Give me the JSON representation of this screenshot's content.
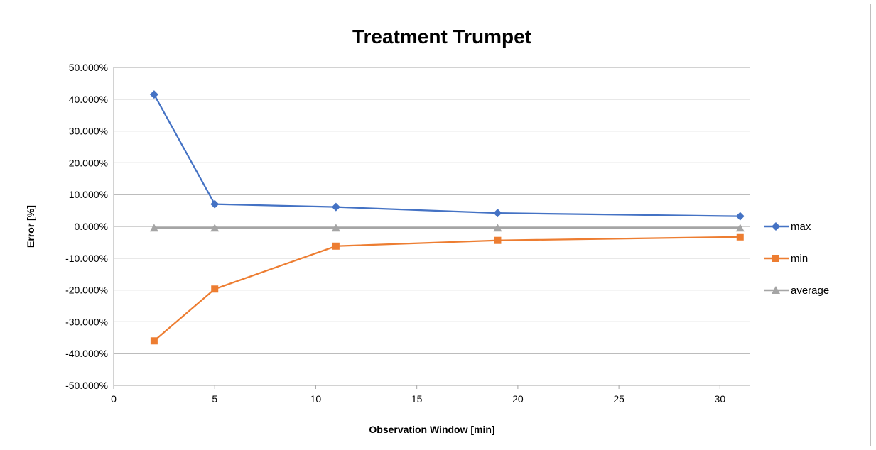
{
  "chart_data": {
    "type": "line",
    "title": "Treatment Trumpet",
    "xlabel": "Observation Window [min]",
    "ylabel": "Error [%]",
    "xlim": [
      0,
      31.5
    ],
    "ylim": [
      -50,
      50
    ],
    "x_ticks": [
      0,
      5,
      10,
      15,
      20,
      25,
      30
    ],
    "y_ticks": [
      50,
      40,
      30,
      20,
      10,
      0,
      -10,
      -20,
      -30,
      -40,
      -50
    ],
    "y_tick_labels": [
      "50.000%",
      "40.000%",
      "30.000%",
      "20.000%",
      "10.000%",
      "0.000%",
      "-10.000%",
      "-20.000%",
      "-30.000%",
      "-40.000%",
      "-50.000%"
    ],
    "x_tick_labels": [
      "0",
      "5",
      "10",
      "15",
      "20",
      "25",
      "30"
    ],
    "grid": "horizontal",
    "legend_position": "right",
    "x": [
      2,
      5,
      11,
      19,
      31
    ],
    "series": [
      {
        "name": "max",
        "values": [
          41.5,
          7.0,
          6.1,
          4.2,
          3.2
        ],
        "color": "#4472c4",
        "marker": "diamond"
      },
      {
        "name": "min",
        "values": [
          -36.0,
          -19.7,
          -6.2,
          -4.4,
          -3.3
        ],
        "color": "#ed7d31",
        "marker": "square"
      },
      {
        "name": "average",
        "values": [
          -0.5,
          -0.5,
          -0.5,
          -0.5,
          -0.5
        ],
        "color": "#a5a5a5",
        "marker": "triangle"
      }
    ]
  }
}
